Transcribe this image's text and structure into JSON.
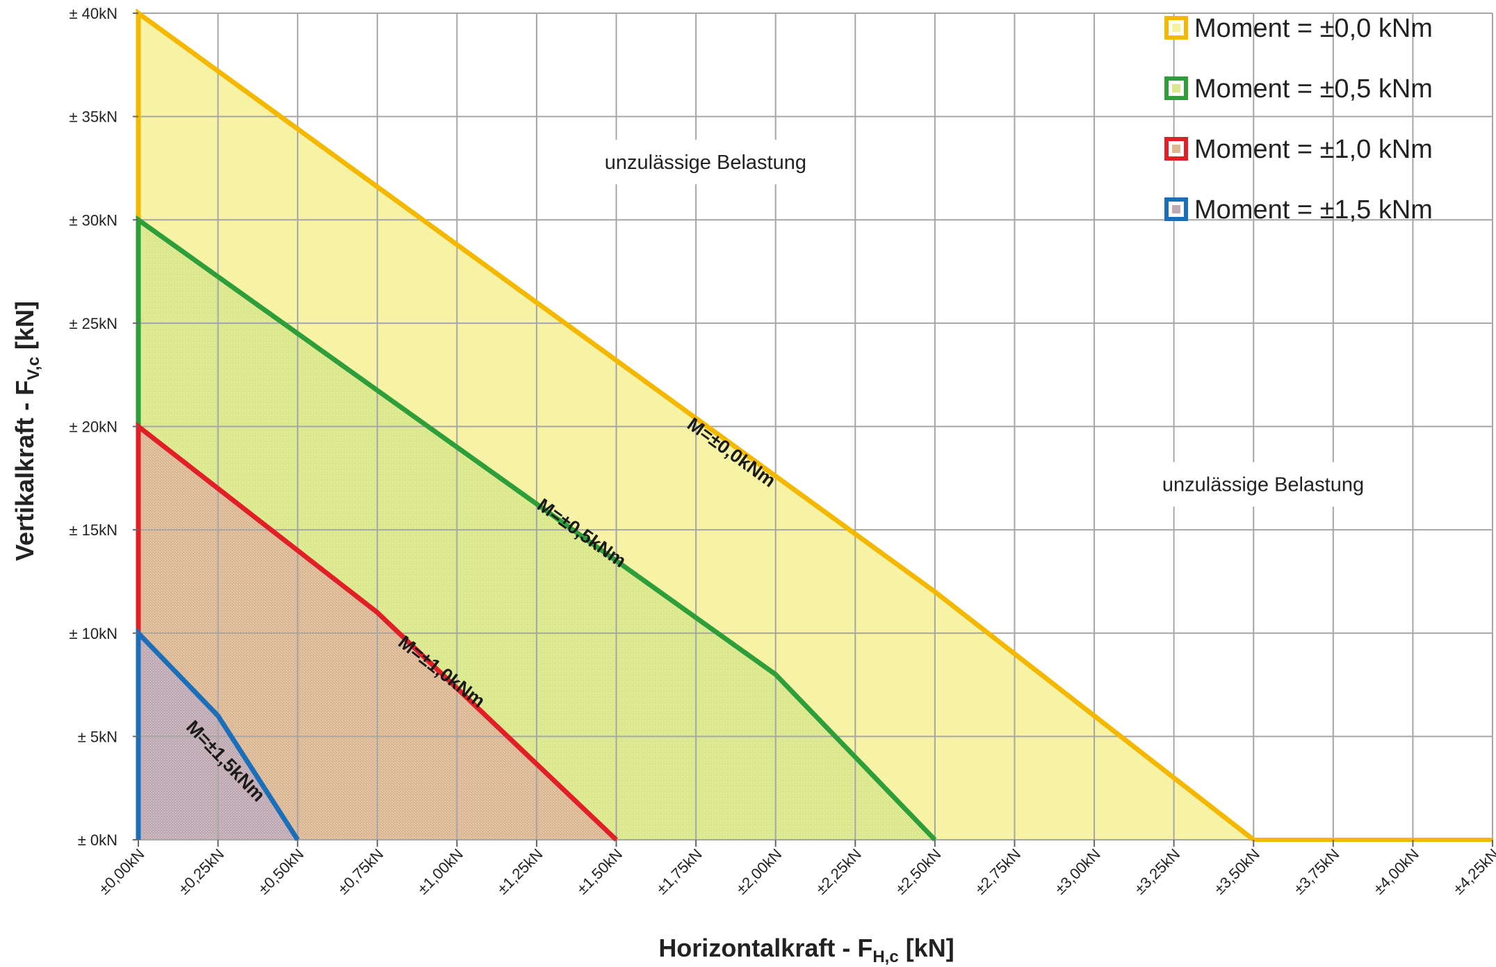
{
  "chart_data": {
    "type": "area",
    "xlabel": {
      "main": "Horizontalkraft - F",
      "sub": "H,c",
      "suffix": " [kN]"
    },
    "ylabel": {
      "main": "Vertikalkraft - F",
      "sub": "V,c",
      "suffix": " [kN]"
    },
    "xlim": [
      0,
      4.25
    ],
    "ylim": [
      0,
      40
    ],
    "x_ticks": [
      0,
      0.25,
      0.5,
      0.75,
      1.0,
      1.25,
      1.5,
      1.75,
      2.0,
      2.25,
      2.5,
      2.75,
      3.0,
      3.25,
      3.5,
      3.75,
      4.0,
      4.25
    ],
    "x_tick_labels": [
      "±0,00kN",
      "±0,25kN",
      "±0,50kN",
      "±0,75kN",
      "±1,00kN",
      "±1,25kN",
      "±1,50kN",
      "±1,75kN",
      "±2,00kN",
      "±2,25kN",
      "±2,50kN",
      "±2,75kN",
      "±3,00kN",
      "±3,25kN",
      "±3,50kN",
      "±3,75kN",
      "±4,00kN",
      "±4,25kN"
    ],
    "y_ticks": [
      0,
      5,
      10,
      15,
      20,
      25,
      30,
      35,
      40
    ],
    "y_tick_labels": [
      "± 0kN",
      "± 5kN",
      "± 10kN",
      "± 15kN",
      "± 20kN",
      "± 25kN",
      "± 30kN",
      "± 35kN",
      "± 40kN"
    ],
    "grid": true,
    "legend_position": "top-right",
    "series": [
      {
        "name": "Moment = ±0,0 kNm",
        "curve_label": "M=±0,0kNm",
        "color": "#f5b800",
        "fill": "#f7f2a0",
        "points": [
          [
            0,
            40
          ],
          [
            2.5,
            12
          ],
          [
            3.5,
            0
          ]
        ],
        "label_at": [
          1.85,
          18.5
        ]
      },
      {
        "name": "Moment = ±0,5 kNm",
        "curve_label": "M=±0,5kNm",
        "color": "#2e9e3a",
        "fill": "#dbe88a",
        "points": [
          [
            0,
            30
          ],
          [
            2.0,
            8
          ],
          [
            2.5,
            0
          ]
        ],
        "label_at": [
          1.38,
          14.6
        ]
      },
      {
        "name": "Moment = ±1,0 kNm",
        "curve_label": "M=±1,0kNm",
        "color": "#e01f26",
        "fill": "#ddb894",
        "points": [
          [
            0,
            20
          ],
          [
            0.75,
            11
          ],
          [
            1.5,
            0
          ]
        ],
        "label_at": [
          0.94,
          7.9
        ]
      },
      {
        "name": "Moment = ±1,5 kNm",
        "curve_label": "M=±1,5kNm",
        "color": "#1b6fb8",
        "fill": "#c0aab4",
        "points": [
          [
            0,
            10
          ],
          [
            0.25,
            6
          ],
          [
            0.5,
            0
          ]
        ],
        "label_at": [
          0.26,
          3.6
        ]
      }
    ],
    "annotations": [
      {
        "text": "unzulässige Belastung",
        "at": [
          1.78,
          32.8
        ]
      },
      {
        "text": "unzulässige Belastung",
        "at": [
          3.53,
          17.2
        ]
      }
    ]
  }
}
